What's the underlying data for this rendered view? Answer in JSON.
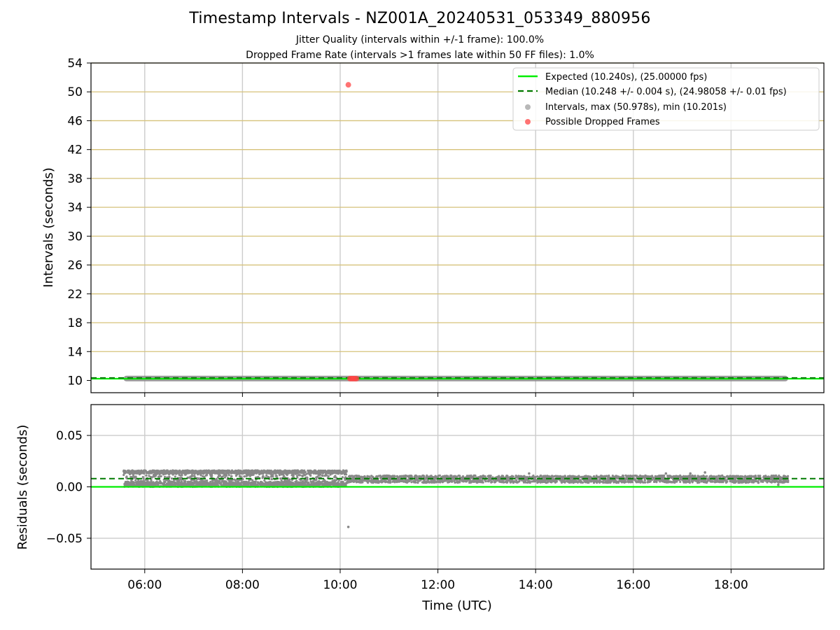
{
  "chart_data": [
    {
      "type": "scatter",
      "title": "Timestamp Intervals - NZ001A_20240531_053349_880956",
      "subtitle_lines": [
        "Jitter Quality (intervals within +/-1 frame): 100.0%",
        "Dropped Frame Rate (intervals >1 frames late within 50 FF files): 1.0%"
      ],
      "xlabel": "",
      "ylabel": "Intervals (seconds)",
      "ylim": [
        8.3,
        54
      ],
      "y_ticks": [
        10,
        14,
        18,
        22,
        26,
        30,
        34,
        38,
        42,
        46,
        50,
        54
      ],
      "y_tick_labels": [
        "10",
        "14",
        "18",
        "22",
        "26",
        "30",
        "34",
        "38",
        "42",
        "46",
        "50",
        "54"
      ],
      "grid": "horizontal",
      "legend_position": "top-right",
      "legend": [
        "Expected (10.240s), (25.00000 fps)",
        "Median (10.248 +/- 0.004 s), (24.98058 +/- 0.01 fps)",
        "Intervals, max (50.978s), min (10.201s)",
        "Possible Dropped Frames"
      ],
      "series": [
        {
          "kind": "hline",
          "value": 10.24,
          "color": "#00ee00"
        },
        {
          "kind": "hline-dashed",
          "value": 10.248,
          "color": "#007a00"
        },
        {
          "kind": "intervals",
          "x_range": [
            "05:34",
            "19:10"
          ],
          "y_range": [
            10.201,
            10.26
          ],
          "color": "#888888"
        },
        {
          "kind": "dropped",
          "points": [
            {
              "x": "10:10",
              "y": 50.978
            },
            {
              "x": "10:12",
              "y": 10.25
            },
            {
              "x": "10:14",
              "y": 10.25
            },
            {
              "x": "10:16",
              "y": 10.25
            },
            {
              "x": "10:18",
              "y": 10.25
            },
            {
              "x": "10:20",
              "y": 10.25
            }
          ],
          "color": "#ff4444"
        }
      ]
    },
    {
      "type": "scatter",
      "xlabel": "Time (UTC)",
      "ylabel": "Residuals (seconds)",
      "xlim": [
        "04:54",
        "19:54"
      ],
      "x_ticks": [
        "06:00",
        "08:00",
        "10:00",
        "12:00",
        "14:00",
        "16:00",
        "18:00"
      ],
      "ylim": [
        -0.08,
        0.08
      ],
      "y_ticks": [
        -0.05,
        0.0,
        0.05
      ],
      "y_tick_labels": [
        "−0.05",
        "0.00",
        "0.05"
      ],
      "grid": "both",
      "series": [
        {
          "kind": "hline",
          "value": 0.0,
          "color": "#00ee00"
        },
        {
          "kind": "hline-dashed",
          "value": 0.008,
          "color": "#007a00"
        },
        {
          "kind": "residuals-band",
          "x_range": [
            "05:34",
            "10:08"
          ],
          "y_range": [
            0.0,
            0.016
          ],
          "color": "#888888"
        },
        {
          "kind": "residuals-band",
          "x_range": [
            "10:08",
            "19:10"
          ],
          "y_range": [
            0.004,
            0.011
          ],
          "color": "#888888"
        },
        {
          "kind": "outliers",
          "points": [
            {
              "x": "10:10",
              "y": -0.039
            },
            {
              "x": "13:52",
              "y": 0.013
            },
            {
              "x": "16:40",
              "y": 0.013
            },
            {
              "x": "17:10",
              "y": 0.013
            },
            {
              "x": "17:28",
              "y": 0.014
            },
            {
              "x": "18:58",
              "y": 0.002
            }
          ],
          "color": "#888888"
        }
      ]
    }
  ]
}
